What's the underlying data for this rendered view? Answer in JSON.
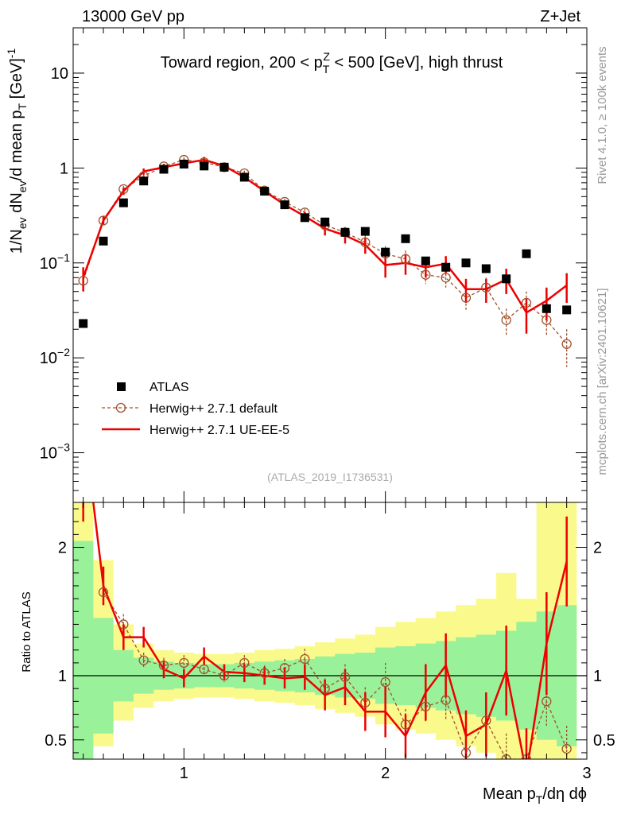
{
  "header": {
    "left": "13000 GeV pp",
    "right": "Z+Jet"
  },
  "side_labels": {
    "rivet": "Rivet 4.1.0, ≥ 100k events",
    "mcplots": "mcplots.cern.ch [arXiv:2401.10621]"
  },
  "chart_data": [
    {
      "panel": "main",
      "type": "scatter",
      "title": {
        "pre": "Toward region, 200 < p",
        "sub": "T",
        "sup": "Z",
        "post": " < 500 [GeV], high thrust"
      },
      "ylabel": "1/N_ev dN_ev/d mean p_T [GeV]^-1",
      "ylabel_parts": {
        "a": "1/N",
        "b": "ev",
        "c": " dN",
        "d": "ev",
        "e": "/d mean p",
        "f": "T",
        "g": " [GeV]",
        "h": "-1"
      },
      "yscale": "log",
      "ylim": [
        0.0003,
        30
      ],
      "xlim": [
        0.45,
        3.0
      ],
      "y_ticks": [
        {
          "value": 0.001,
          "base": "10",
          "exp": "−3"
        },
        {
          "value": 0.01,
          "base": "10",
          "exp": "−2"
        },
        {
          "value": 0.1,
          "base": "10",
          "exp": "−1"
        },
        {
          "value": 1,
          "label": "1"
        },
        {
          "value": 10,
          "label": "10"
        }
      ],
      "annotation": "(ATLAS_2019_I1736531)",
      "legend": {
        "placement": "lower-left",
        "entries": [
          "ATLAS",
          "Herwig++ 2.7.1 default",
          "Herwig++ 2.7.1 UE-EE-5"
        ]
      },
      "series": [
        {
          "name": "ATLAS",
          "style": "square",
          "color": "#000000",
          "x": [
            0.5,
            0.6,
            0.7,
            0.8,
            0.9,
            1.0,
            1.1,
            1.2,
            1.3,
            1.4,
            1.5,
            1.6,
            1.7,
            1.8,
            1.9,
            2.0,
            2.1,
            2.2,
            2.3,
            2.4,
            2.5,
            2.6,
            2.7,
            2.8,
            2.9
          ],
          "y": [
            0.023,
            0.17,
            0.43,
            0.73,
            0.97,
            1.1,
            1.05,
            1.02,
            0.8,
            0.57,
            0.41,
            0.3,
            0.27,
            0.21,
            0.215,
            0.13,
            0.18,
            0.105,
            0.09,
            0.1,
            0.087,
            0.068,
            0.125,
            0.033,
            0.032
          ]
        },
        {
          "name": "Herwig++ 2.7.1 default",
          "style": "open-circle-dashed",
          "color": "#a0522d",
          "x": [
            0.5,
            0.6,
            0.7,
            0.8,
            0.9,
            1.0,
            1.1,
            1.2,
            1.3,
            1.4,
            1.5,
            1.6,
            1.7,
            1.8,
            1.9,
            2.0,
            2.1,
            2.2,
            2.3,
            2.4,
            2.5,
            2.6,
            2.7,
            2.8,
            2.9
          ],
          "y": [
            0.065,
            0.28,
            0.6,
            0.82,
            1.04,
            1.22,
            1.15,
            1.02,
            0.88,
            0.58,
            0.44,
            0.34,
            0.25,
            0.21,
            0.165,
            0.125,
            0.11,
            0.075,
            0.07,
            0.043,
            0.055,
            0.025,
            0.038,
            0.025,
            0.014
          ],
          "err": [
            0.015,
            0.03,
            0.05,
            0.06,
            0.07,
            0.08,
            0.08,
            0.07,
            0.06,
            0.04,
            0.035,
            0.03,
            0.03,
            0.03,
            0.03,
            0.025,
            0.025,
            0.015,
            0.015,
            0.012,
            0.015,
            0.008,
            0.012,
            0.008,
            0.006
          ]
        },
        {
          "name": "Herwig++ 2.7.1 UE-EE-5",
          "style": "line",
          "color": "#ee0000",
          "x": [
            0.5,
            0.6,
            0.7,
            0.8,
            0.9,
            1.0,
            1.1,
            1.2,
            1.3,
            1.4,
            1.5,
            1.6,
            1.7,
            1.8,
            1.9,
            2.0,
            2.1,
            2.2,
            2.3,
            2.4,
            2.5,
            2.6,
            2.7,
            2.8,
            2.9
          ],
          "y": [
            0.07,
            0.28,
            0.57,
            0.92,
            1.02,
            1.12,
            1.22,
            1.05,
            0.8,
            0.57,
            0.41,
            0.31,
            0.23,
            0.195,
            0.155,
            0.095,
            0.1,
            0.09,
            0.098,
            0.053,
            0.053,
            0.067,
            0.03,
            0.04,
            0.058
          ],
          "err": [
            0.02,
            0.03,
            0.05,
            0.07,
            0.08,
            0.08,
            0.09,
            0.08,
            0.07,
            0.05,
            0.04,
            0.035,
            0.035,
            0.035,
            0.03,
            0.025,
            0.025,
            0.02,
            0.02,
            0.015,
            0.015,
            0.02,
            0.012,
            0.015,
            0.02
          ]
        }
      ]
    },
    {
      "panel": "ratio",
      "type": "line",
      "xlabel_parts": {
        "a": "Mean p",
        "b": "T",
        "c": "/dη dϕ"
      },
      "ylabel": "Ratio to ATLAS",
      "ylim": [
        0.35,
        2.35
      ],
      "xlim": [
        0.45,
        3.0
      ],
      "y_ticks": [
        {
          "value": 0.5,
          "label": "0.5"
        },
        {
          "value": 1,
          "label": "1"
        },
        {
          "value": 2,
          "label": "2"
        }
      ],
      "x_ticks": [
        {
          "value": 1,
          "label": "1"
        },
        {
          "value": 2,
          "label": "2"
        },
        {
          "value": 3,
          "label": "3"
        }
      ],
      "bands": {
        "bin_edges": [
          0.45,
          0.55,
          0.65,
          0.75,
          0.85,
          0.95,
          1.05,
          1.15,
          1.25,
          1.35,
          1.45,
          1.55,
          1.65,
          1.75,
          1.85,
          1.95,
          2.05,
          2.15,
          2.25,
          2.35,
          2.45,
          2.55,
          2.65,
          2.75,
          2.85,
          2.95
        ],
        "inner_color": "#99f299",
        "outer_color": "#fafa8c",
        "inner_hi": [
          2.05,
          1.45,
          1.2,
          1.14,
          1.11,
          1.1,
          1.09,
          1.09,
          1.1,
          1.11,
          1.12,
          1.13,
          1.15,
          1.17,
          1.18,
          1.22,
          1.23,
          1.25,
          1.27,
          1.3,
          1.32,
          1.35,
          1.42,
          1.5,
          1.55
        ],
        "inner_lo": [
          0.35,
          0.55,
          0.8,
          0.86,
          0.89,
          0.9,
          0.91,
          0.91,
          0.9,
          0.89,
          0.88,
          0.87,
          0.85,
          0.83,
          0.82,
          0.78,
          0.77,
          0.75,
          0.73,
          0.7,
          0.68,
          0.65,
          0.58,
          0.5,
          0.45
        ],
        "outer_hi": [
          2.35,
          1.9,
          1.4,
          1.25,
          1.2,
          1.18,
          1.17,
          1.17,
          1.18,
          1.2,
          1.21,
          1.23,
          1.26,
          1.29,
          1.32,
          1.38,
          1.42,
          1.45,
          1.5,
          1.55,
          1.6,
          1.8,
          1.6,
          2.35,
          2.35
        ],
        "outer_lo": [
          0.35,
          0.45,
          0.65,
          0.75,
          0.8,
          0.82,
          0.83,
          0.83,
          0.82,
          0.8,
          0.79,
          0.77,
          0.74,
          0.71,
          0.68,
          0.62,
          0.58,
          0.55,
          0.5,
          0.45,
          0.4,
          0.35,
          0.35,
          0.35,
          0.35
        ]
      },
      "series": [
        {
          "name": "Herwig++ 2.7.1 default",
          "x": [
            0.6,
            0.7,
            0.8,
            0.9,
            1.0,
            1.1,
            1.2,
            1.3,
            1.4,
            1.5,
            1.6,
            1.7,
            1.8,
            1.9,
            2.0,
            2.1,
            2.2,
            2.3,
            2.4,
            2.5,
            2.6,
            2.7,
            2.8,
            2.9
          ],
          "y": [
            1.65,
            1.4,
            1.12,
            1.08,
            1.1,
            1.05,
            1.0,
            1.1,
            1.02,
            1.06,
            1.13,
            0.9,
            0.99,
            0.79,
            0.95,
            0.62,
            0.76,
            0.81,
            0.4,
            0.65,
            0.35,
            0.35,
            0.8,
            0.43
          ],
          "err": [
            0.1,
            0.08,
            0.06,
            0.06,
            0.06,
            0.05,
            0.05,
            0.06,
            0.06,
            0.07,
            0.08,
            0.08,
            0.1,
            0.12,
            0.15,
            0.12,
            0.12,
            0.15,
            0.12,
            0.18,
            0.2,
            0.2,
            0.2,
            0.18
          ]
        },
        {
          "name": "Herwig++ 2.7.1 UE-EE-5",
          "x": [
            0.5,
            0.6,
            0.7,
            0.8,
            0.9,
            1.0,
            1.1,
            1.2,
            1.3,
            1.4,
            1.5,
            1.6,
            1.7,
            1.8,
            1.9,
            2.0,
            2.1,
            2.2,
            2.3,
            2.4,
            2.5,
            2.6,
            2.7,
            2.8,
            2.9
          ],
          "y": [
            3.0,
            1.7,
            1.3,
            1.3,
            1.05,
            0.98,
            1.15,
            1.03,
            1.02,
            1.0,
            0.98,
            0.99,
            0.85,
            0.91,
            0.72,
            0.72,
            0.53,
            0.87,
            1.08,
            0.53,
            0.62,
            1.04,
            0.24,
            1.25,
            1.89
          ],
          "err": [
            0.8,
            0.15,
            0.1,
            0.08,
            0.07,
            0.07,
            0.07,
            0.06,
            0.07,
            0.07,
            0.08,
            0.1,
            0.12,
            0.14,
            0.15,
            0.2,
            0.17,
            0.22,
            0.25,
            0.2,
            0.25,
            0.35,
            0.35,
            0.4,
            0.35
          ]
        }
      ]
    }
  ]
}
